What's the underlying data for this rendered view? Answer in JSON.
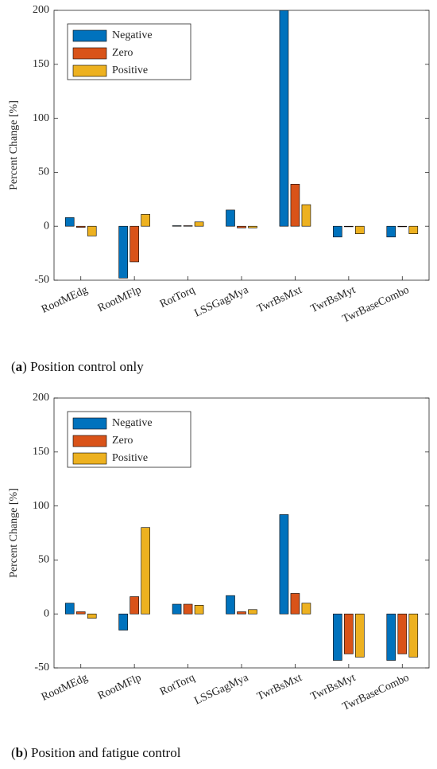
{
  "chart_data": [
    {
      "type": "bar",
      "caption_open": "(",
      "caption_label": "a",
      "caption_text": ") Position control only",
      "ylabel": "Percent Change [%]",
      "categories": [
        "RootMEdg",
        "RootMFlp",
        "RotTorq",
        "LSSGagMya",
        "TwrBsMxt",
        "TwrBsMyt",
        "TwrBaseCombo"
      ],
      "series": [
        {
          "name": "Negative",
          "color": "#0072BD",
          "values": [
            8,
            -48,
            0.5,
            15,
            200,
            -10,
            -10
          ]
        },
        {
          "name": "Zero",
          "color": "#D95319",
          "values": [
            -1,
            -33,
            0.5,
            -1.5,
            39,
            -0.5,
            -0.5
          ]
        },
        {
          "name": "Positive",
          "color": "#EDB120",
          "values": [
            -9,
            11,
            4,
            -1.5,
            20,
            -7,
            -7
          ]
        }
      ],
      "ylim": [
        -50,
        200
      ],
      "yticks": [
        -50,
        0,
        50,
        100,
        150,
        200
      ],
      "legend": "upper left"
    },
    {
      "type": "bar",
      "caption_open": "(",
      "caption_label": "b",
      "caption_text": ") Position and fatigue control",
      "ylabel": "Percent Change [%]",
      "categories": [
        "RootMEdg",
        "RootMFlp",
        "RotTorq",
        "LSSGagMya",
        "TwrBsMxt",
        "TwrBsMyt",
        "TwrBaseCombo"
      ],
      "series": [
        {
          "name": "Negative",
          "color": "#0072BD",
          "values": [
            10,
            -15,
            9,
            17,
            92,
            -43,
            -43
          ]
        },
        {
          "name": "Zero",
          "color": "#D95319",
          "values": [
            2,
            16,
            9,
            2,
            19,
            -37,
            -37
          ]
        },
        {
          "name": "Positive",
          "color": "#EDB120",
          "values": [
            -4,
            80,
            8,
            4,
            10,
            -40,
            -40
          ]
        }
      ],
      "ylim": [
        -50,
        200
      ],
      "yticks": [
        -50,
        0,
        50,
        100,
        150,
        200
      ],
      "legend": "upper left"
    }
  ]
}
